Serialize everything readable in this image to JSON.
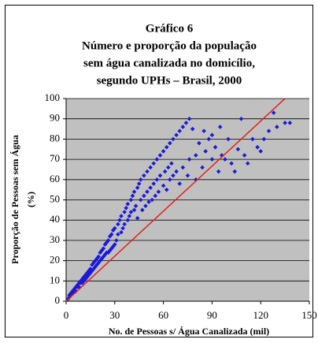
{
  "chart_data": {
    "type": "scatter",
    "title": [
      "Gráfico 6",
      "Número e proporção da população",
      "sem água canalizada no domicílio,",
      "segundo UPHs – Brasil, 2000"
    ],
    "xlabel": "No. de Pessoas s/ Água Canalizada (mil)",
    "ylabel": [
      "Proporção de Pessoas sem Água",
      "(%)"
    ],
    "xlim": [
      0,
      150
    ],
    "xticks": [
      0,
      30,
      60,
      90,
      120,
      150
    ],
    "ylim": [
      0,
      100
    ],
    "yticks": [
      0,
      10,
      20,
      30,
      40,
      50,
      60,
      70,
      80,
      90,
      100
    ],
    "grid": true,
    "series": [
      {
        "color": "#1a1ad6",
        "x": [
          1,
          2,
          2,
          3,
          3,
          4,
          4,
          5,
          5,
          6,
          6,
          7,
          7,
          8,
          8,
          9,
          9,
          10,
          10,
          11,
          11,
          12,
          12,
          13,
          13,
          14,
          14,
          15,
          15,
          16,
          16,
          17,
          17,
          18,
          18,
          19,
          19,
          20,
          20,
          21,
          21,
          22,
          22,
          23,
          23,
          24,
          24,
          25,
          25,
          26,
          26,
          27,
          27,
          28,
          28,
          29,
          29,
          30,
          30,
          31,
          32,
          32,
          33,
          34,
          34,
          35,
          36,
          36,
          37,
          38,
          38,
          39,
          40,
          40,
          41,
          42,
          42,
          43,
          44,
          44,
          45,
          46,
          46,
          47,
          48,
          48,
          49,
          50,
          50,
          51,
          52,
          52,
          53,
          54,
          54,
          55,
          56,
          56,
          57,
          58,
          58,
          60,
          60,
          61,
          62,
          62,
          63,
          64,
          64,
          65,
          66,
          66,
          68,
          68,
          70,
          70,
          72,
          72,
          74,
          75,
          76,
          76,
          78,
          80,
          80,
          82,
          84,
          85,
          86,
          88,
          90,
          90,
          92,
          94,
          95,
          96,
          98,
          100,
          102,
          104,
          106,
          108,
          110,
          112,
          115,
          118,
          120,
          122,
          125,
          128,
          130,
          135,
          138
        ],
        "values": [
          1,
          2,
          3,
          3,
          4,
          4,
          5,
          5,
          6,
          5,
          7,
          7,
          8,
          7,
          9,
          9,
          10,
          9,
          11,
          10,
          12,
          11,
          13,
          12,
          14,
          13,
          15,
          14,
          16,
          15,
          18,
          16,
          19,
          17,
          20,
          18,
          21,
          19,
          22,
          20,
          24,
          21,
          25,
          22,
          26,
          23,
          28,
          24,
          29,
          24,
          30,
          25,
          32,
          26,
          33,
          27,
          35,
          28,
          36,
          30,
          38,
          33,
          40,
          34,
          42,
          36,
          44,
          38,
          46,
          40,
          48,
          42,
          50,
          44,
          52,
          45,
          54,
          47,
          56,
          41,
          58,
          50,
          60,
          45,
          62,
          52,
          47,
          64,
          54,
          49,
          66,
          56,
          50,
          68,
          58,
          52,
          70,
          60,
          54,
          72,
          62,
          74,
          57,
          64,
          76,
          55,
          66,
          78,
          60,
          68,
          80,
          62,
          82,
          64,
          84,
          58,
          86,
          66,
          88,
          62,
          90,
          70,
          85,
          72,
          60,
          78,
          66,
          84,
          74,
          80,
          70,
          82,
          76,
          64,
          86,
          72,
          70,
          80,
          68,
          64,
          75,
          90,
          72,
          68,
          80,
          76,
          74,
          80,
          84,
          93,
          86,
          88,
          88
        ]
      }
    ],
    "trendline": {
      "color": "#e0201a",
      "x": [
        0,
        135
      ],
      "values": [
        0,
        100
      ]
    },
    "background": "#c0c0c0"
  }
}
